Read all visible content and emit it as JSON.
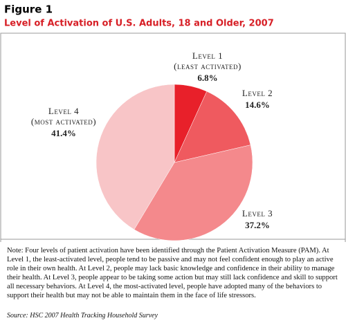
{
  "chart_data": {
    "type": "pie",
    "label": "Figure 1",
    "title": "Level of Activation of U.S. Adults, 18 and Older, 2007",
    "categories": [
      "Level 1 (least activated)",
      "Level 2",
      "Level 3",
      "Level 4 (most activated)"
    ],
    "values": [
      6.8,
      14.6,
      37.2,
      41.4
    ],
    "value_labels": [
      "6.8%",
      "14.6%",
      "37.2%",
      "41.4%"
    ],
    "colors": [
      "#e8202a",
      "#ef5a5f",
      "#f4898c",
      "#f8c5c7"
    ]
  },
  "note": "Note: Four levels of patient activation have been identified through the Patient Activation Measure (PAM). At Level 1, the least-activated level, people tend to be passive and may not feel confident enough to play an active role in their own health.  At Level 2, people may lack basic knowledge and confidence in their ability to manage their health. At Level 3, people appear to be taking some action but may still lack confidence and skill to support all necessary behaviors.  At Level 4, the most-activated level, people have adopted many of the behaviors to support their health but may not be able to maintain them in the face of life stressors.",
  "source": "Source: HSC 2007 Health Tracking Household Survey"
}
